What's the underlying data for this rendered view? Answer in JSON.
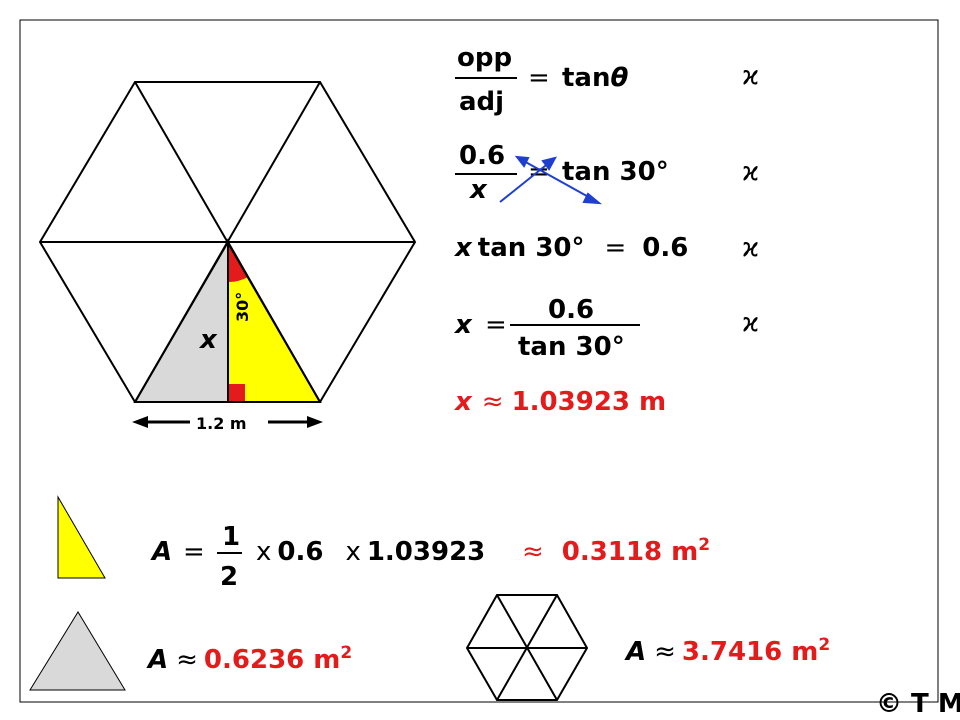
{
  "diagram": {
    "angle_label": "30°",
    "side_label": "x",
    "base_label": "1.2 m"
  },
  "working": {
    "line1": {
      "num": "opp",
      "den": "adj",
      "eq": "=",
      "rhs_fn": "tan",
      "rhs_var": "θ"
    },
    "line2": {
      "num": "0.6",
      "den": "x",
      "eq": "=",
      "rhs": "tan 30°"
    },
    "line3": {
      "var": "x",
      "lhs": "tan 30°",
      "eq": "=",
      "rhs": "0.6"
    },
    "line4": {
      "var": "x",
      "eq": "=",
      "num": "0.6",
      "den": "tan 30°"
    },
    "marks": [
      "ϰ",
      "ϰ",
      "ϰ",
      "ϰ"
    ],
    "result": {
      "var": "x",
      "approx": "≈",
      "value": "1.03923 m"
    }
  },
  "area_triangle": {
    "var": "A",
    "eq": "=",
    "num": "1",
    "den": "2",
    "times1": "x",
    "f1": "0.6",
    "times2": "x",
    "f2": "1.03923",
    "approx": "≈",
    "value": "0.3118 m",
    "exp": "2"
  },
  "area_grey": {
    "var": "A",
    "approx": "≈",
    "value": "0.6236 m",
    "exp": "2"
  },
  "area_hexagon": {
    "var": "A",
    "approx": "≈",
    "value": "3.7416 m",
    "exp": "2"
  },
  "credit": "© T Madas"
}
